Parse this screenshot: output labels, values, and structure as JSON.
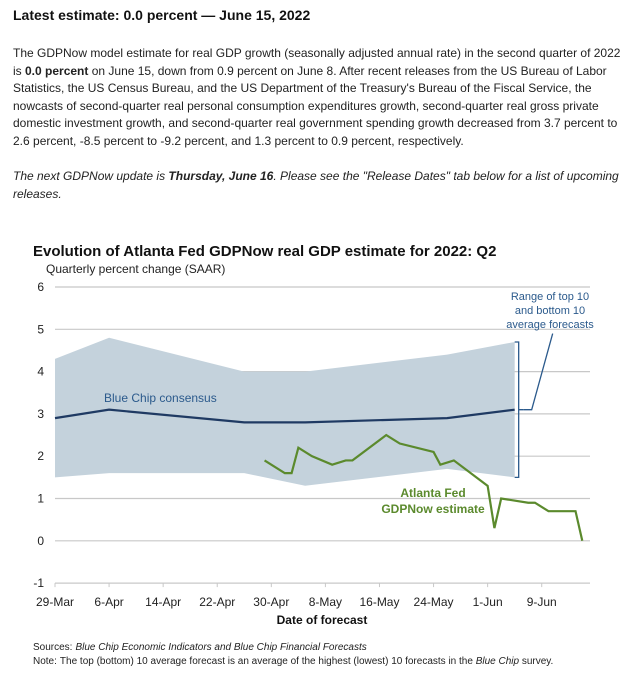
{
  "header": {
    "title": "Latest estimate: 0.0 percent — June 15, 2022"
  },
  "paragraph1": {
    "t1": "The GDPNow model estimate for real GDP growth (seasonally adjusted annual rate) in the second quarter of 2022 is ",
    "b1": "0.0 percent",
    "t2": " on June 15, down from 0.9 percent on June 8. After recent releases from the US Bureau of Labor Statistics, the US Census Bureau, and the US Department of the Treasury's Bureau of the Fiscal Service, the nowcasts of second-quarter real personal consumption expenditures growth, second-quarter real gross private domestic investment growth, and second-quarter real government spending growth decreased from 3.7 percent to 2.6 percent, -8.5 percent to -9.2 percent, and 1.3 percent to 0.9 percent, respectively."
  },
  "paragraph2": {
    "t1": "The next GDPNow update is ",
    "b1": "Thursday, June 16",
    "t2": ". Please see the \"Release Dates\" tab below for a list of upcoming releases."
  },
  "chart_data": {
    "type": "line",
    "title": "Evolution of Atlanta Fed GDPNow real GDP estimate for 2022: Q2",
    "subtitle": "Quarterly percent change (SAAR)",
    "xlabel": "Date of forecast",
    "ylim": [
      -1,
      6
    ],
    "yticks": [
      "6",
      "5",
      "4",
      "3",
      "2",
      "1",
      "0",
      "-1"
    ],
    "ytick_values": [
      6,
      5,
      4,
      3,
      2,
      1,
      0,
      -1
    ],
    "x_unit": "days since 29-Mar",
    "xticks": [
      "29-Mar",
      "6-Apr",
      "14-Apr",
      "22-Apr",
      "30-Apr",
      "8-May",
      "16-May",
      "24-May",
      "1-Jun",
      "9-Jun"
    ],
    "xtick_values": [
      0,
      8,
      16,
      24,
      32,
      40,
      48,
      56,
      64,
      72
    ],
    "grid": true,
    "colors": {
      "band": "#c4d2dc",
      "bluechip": "#1f3a63",
      "gdpnow": "#5b8a2d",
      "annotation": "#2b5a8c",
      "grid": "#c8c8c8"
    },
    "series": [
      {
        "name": "Blue Chip consensus",
        "x": [
          0,
          8,
          28,
          37,
          58,
          68
        ],
        "values": [
          2.9,
          3.1,
          2.8,
          2.8,
          2.9,
          3.1
        ]
      },
      {
        "name": "Top 10 average",
        "x": [
          0,
          8,
          28,
          37,
          58,
          68
        ],
        "values": [
          4.3,
          4.8,
          4.0,
          4.0,
          4.4,
          4.7
        ]
      },
      {
        "name": "Bottom 10 average",
        "x": [
          0,
          8,
          28,
          37,
          58,
          68
        ],
        "values": [
          1.5,
          1.6,
          1.6,
          1.3,
          1.7,
          1.5
        ]
      },
      {
        "name": "Atlanta Fed GDPNow estimate",
        "x": [
          31,
          34,
          35,
          36,
          38,
          41,
          43,
          44,
          49,
          51,
          56,
          57,
          59,
          64,
          65,
          66,
          70,
          71,
          73,
          77,
          78
        ],
        "values": [
          1.9,
          1.6,
          1.6,
          2.2,
          2.0,
          1.8,
          1.9,
          1.9,
          2.5,
          2.3,
          2.1,
          1.8,
          1.9,
          1.3,
          0.3,
          1.0,
          0.9,
          0.9,
          0.7,
          0.7,
          0.0
        ]
      }
    ],
    "annotations": {
      "bluechip": "Blue Chip consensus",
      "range": [
        "Range of top 10",
        "and bottom 10",
        "average forecasts"
      ],
      "gdpnow": [
        "Atlanta Fed",
        "GDPNow estimate"
      ]
    },
    "sources_label": "Sources:",
    "sources_text": "Blue Chip Economic Indicators and Blue Chip Financial Forecasts",
    "note_label": "Note:",
    "note_text1": "The top (bottom) 10 average forecast is an average of the highest (lowest) 10 forecasts in the ",
    "note_italic": "Blue Chip",
    "note_text2": " survey."
  }
}
